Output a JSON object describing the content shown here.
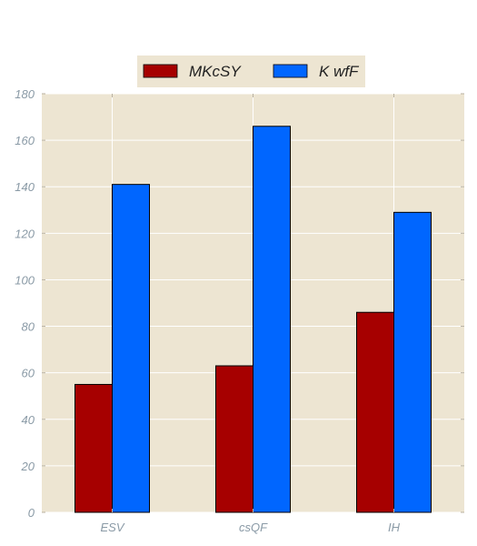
{
  "chart_data": {
    "type": "bar",
    "title": "",
    "xlabel": "",
    "ylabel": "",
    "categories": [
      "ESV",
      "csQF",
      "IH"
    ],
    "series": [
      {
        "name": "MKcSY",
        "values": [
          55,
          63,
          86
        ],
        "color": "#a60000"
      },
      {
        "name": "K wfF",
        "values": [
          141,
          166,
          129
        ],
        "color": "#0066ff"
      }
    ],
    "ylim": [
      0,
      180
    ],
    "yticks": [
      0,
      20,
      40,
      60,
      80,
      100,
      120,
      140,
      160,
      180
    ],
    "grid": true,
    "legend_position": "top-center",
    "colors": {
      "plot_background": "#ede5d2",
      "legend_background": "#ede5d2",
      "grid": "#ffffff",
      "tick_text": "#8a9aa6",
      "bar_edge": "#000000"
    }
  }
}
